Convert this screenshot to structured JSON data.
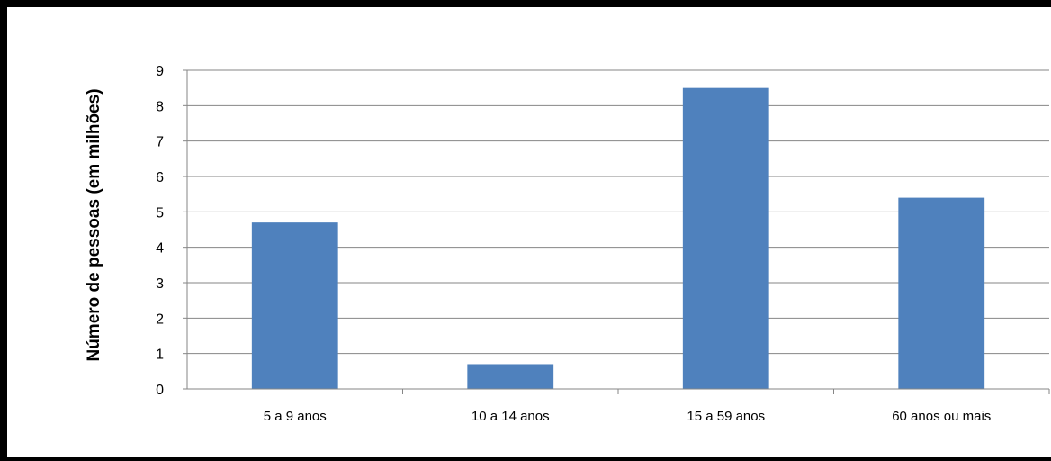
{
  "chart_data": {
    "type": "bar",
    "title": "",
    "xlabel": "",
    "ylabel": "Número de pessoas (em milhões)",
    "categories": [
      "5 a 9 anos",
      "10 a 14 anos",
      "15 a 59 anos",
      "60 anos ou mais"
    ],
    "values": [
      4.7,
      0.7,
      8.5,
      5.4
    ],
    "ylim": [
      0,
      9
    ],
    "yticks": [
      0,
      1,
      2,
      3,
      4,
      5,
      6,
      7,
      8,
      9
    ],
    "grid": true,
    "legend": "none",
    "colors": {
      "bar": "#4f81bd",
      "grid": "#868686"
    }
  }
}
